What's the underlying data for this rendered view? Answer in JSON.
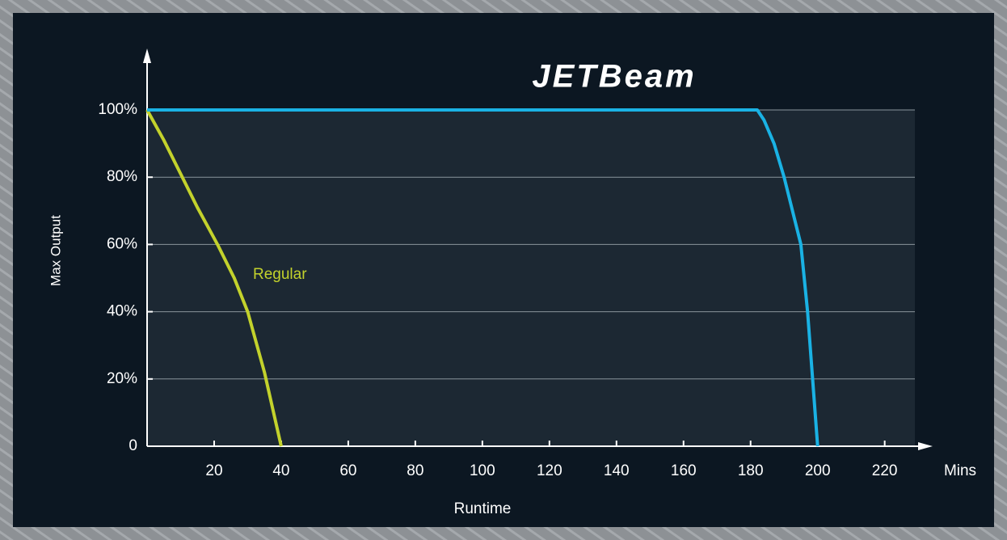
{
  "chart_data": {
    "type": "line",
    "brand": "JETBeam",
    "xlabel": "Runtime",
    "xunit": "Mins",
    "ylabel": "Max Output",
    "xlim": [
      0,
      229
    ],
    "ylim": [
      0,
      100
    ],
    "xticks": [
      20,
      40,
      60,
      80,
      100,
      120,
      140,
      160,
      180,
      200,
      220
    ],
    "yticks": [
      0,
      {
        "value": 20,
        "label": "20%"
      },
      {
        "value": 40,
        "label": "40%"
      },
      {
        "value": 60,
        "label": "60%"
      },
      {
        "value": 80,
        "label": "80%"
      },
      {
        "value": 100,
        "label": "100%"
      }
    ],
    "grid": true,
    "series": [
      {
        "name": "Regular",
        "color": "#c3d22c",
        "x": [
          0,
          5,
          10,
          15,
          21,
          26,
          30,
          35,
          40
        ],
        "values": [
          100,
          91,
          81,
          71,
          60,
          50,
          40,
          22,
          0
        ]
      },
      {
        "color": "#1ab2e4",
        "x": [
          0,
          182,
          184,
          187,
          190,
          193,
          195,
          197,
          198.5,
          200
        ],
        "values": [
          100,
          100,
          97,
          90,
          80,
          68,
          60,
          40,
          20,
          0
        ]
      }
    ]
  }
}
